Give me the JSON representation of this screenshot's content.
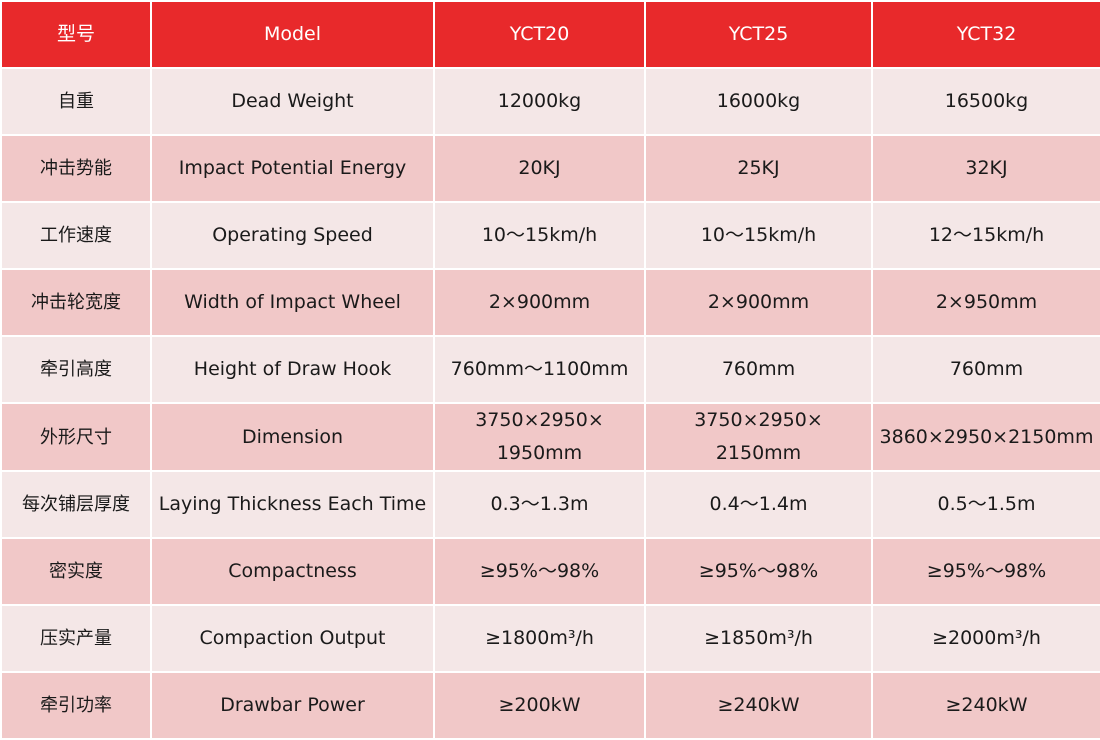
{
  "header": {
    "zh": "型号",
    "en": "Model",
    "models": [
      "YCT20",
      "YCT25",
      "YCT32"
    ]
  },
  "rows": [
    {
      "zh": "自重",
      "en": "Dead Weight",
      "values": [
        "12000kg",
        "16000kg",
        "16500kg"
      ]
    },
    {
      "zh": "冲击势能",
      "en": "Impact Potential Energy",
      "values": [
        "20KJ",
        "25KJ",
        "32KJ"
      ]
    },
    {
      "zh": "工作速度",
      "en": "Operating Speed",
      "values": [
        "10～15km/h",
        "10～15km/h",
        "12～15km/h"
      ]
    },
    {
      "zh": "冲击轮宽度",
      "en": "Width of Impact Wheel",
      "values": [
        "2×900mm",
        "2×900mm",
        "2×950mm"
      ]
    },
    {
      "zh": "牵引高度",
      "en": "Height of Draw Hook",
      "values": [
        "760mm～1100mm",
        "760mm",
        "760mm"
      ]
    },
    {
      "zh": "外形尺寸",
      "en": "Dimension",
      "values": [
        [
          "3750×2950×",
          "1950mm"
        ],
        [
          "3750×2950×",
          "2150mm"
        ],
        "3860×2950×2150mm"
      ]
    },
    {
      "zh": "每次铺层厚度",
      "en": "Laying Thickness Each Time",
      "values": [
        "0.3～1.3m",
        "0.4～1.4m",
        "0.5～1.5m"
      ]
    },
    {
      "zh": "密实度",
      "en": "Compactness",
      "values": [
        "≥95%～98%",
        "≥95%～98%",
        "≥95%～98%"
      ]
    },
    {
      "zh": "压实产量",
      "en": "Compaction Output",
      "values": [
        "≥1800m³/h",
        "≥1850m³/h",
        "≥2000m³/h"
      ]
    },
    {
      "zh": "牵引功率",
      "en": "Drawbar Power",
      "values": [
        "≥200kW",
        "≥240kW",
        "≥240kW"
      ]
    }
  ]
}
